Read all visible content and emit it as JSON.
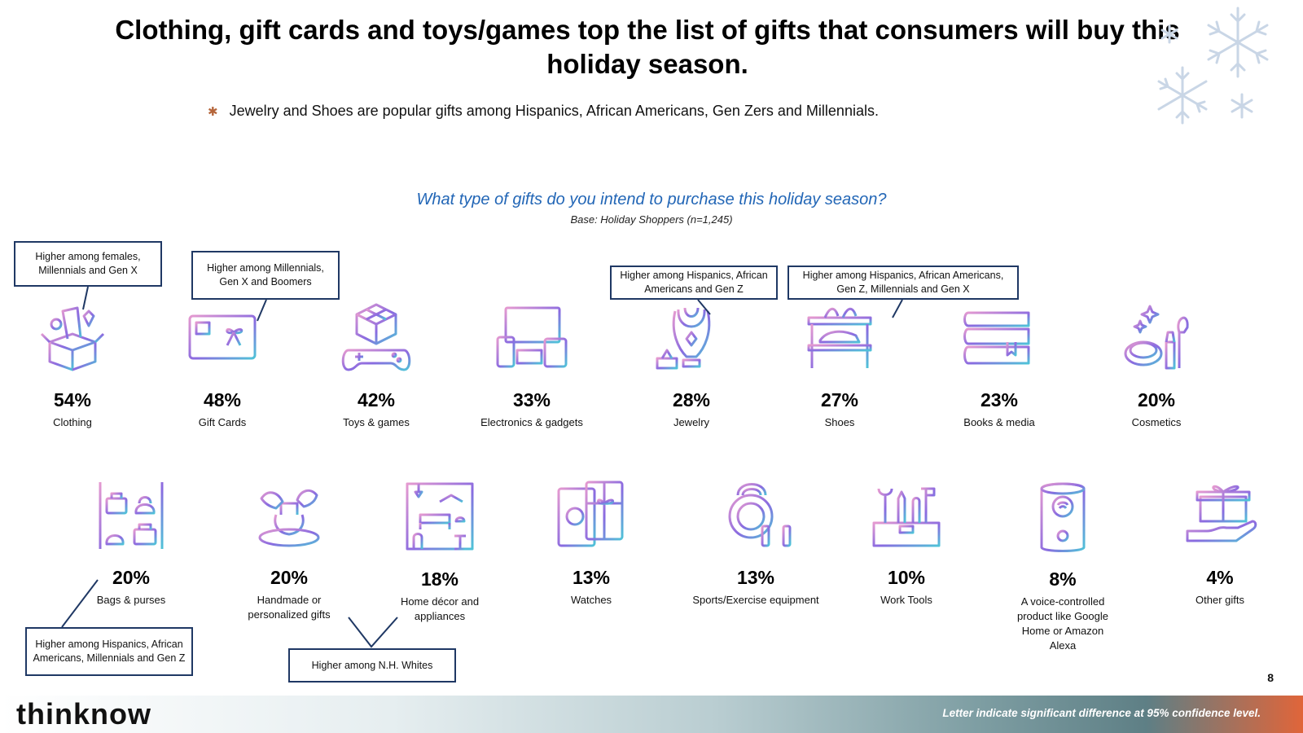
{
  "title": "Clothing, gift cards and toys/games top the list of gifts that consumers will buy this holiday season.",
  "bullet": "Jewelry and Shoes are popular gifts among Hispanics, African Americans, Gen Zers and Millennials.",
  "page_number": "8",
  "footer": {
    "logo": "thinknow",
    "note": "Letter indicate significant difference at 95% confidence level."
  },
  "callouts": {
    "clothing": "Higher among females, Millennials and Gen X",
    "gift_cards": "Higher among Millennials, Gen X and Boomers",
    "jewelry": "Higher among Hispanics, African Americans and Gen Z",
    "shoes": "Higher among Hispanics, African Americans, Gen Z, Millennials and Gen X",
    "bags": "Higher among Hispanics, African Americans, Millennials  and Gen Z",
    "handmade": "Higher among N.H. Whites"
  },
  "colors": {
    "icon_start": "#e59ad0",
    "icon_mid": "#8a6be0",
    "icon_end": "#4fc3d8",
    "question": "#2266b6",
    "callout_border": "#1f3864"
  },
  "chart_data": {
    "type": "table",
    "title": "What type of gifts do you intend to purchase this holiday season?",
    "subtitle": "Base: Holiday Shoppers (n=1,245)",
    "unit": "%",
    "categories": [
      "Clothing",
      "Gift Cards",
      "Toys & games",
      "Electronics & gadgets",
      "Jewelry",
      "Shoes",
      "Books & media",
      "Cosmetics",
      "Bags & purses",
      "Handmade or personalized gifts",
      "Home décor and appliances",
      "Watches",
      "Sports/Exercise equipment",
      "Work Tools",
      "A voice-controlled product like Google Home or Amazon Alexa",
      "Other gifts"
    ],
    "values": [
      54,
      48,
      42,
      33,
      28,
      27,
      23,
      20,
      20,
      20,
      18,
      13,
      13,
      10,
      8,
      4
    ],
    "labels": [
      "54%",
      "48%",
      "42%",
      "33%",
      "28%",
      "27%",
      "23%",
      "20%",
      "20%",
      "20%",
      "18%",
      "13%",
      "13%",
      "10%",
      "8%",
      "4%"
    ],
    "icons": [
      "gift-box-icon",
      "gift-card-icon",
      "toys-games-icon",
      "electronics-icon",
      "jewelry-icon",
      "shoes-icon",
      "books-icon",
      "cosmetics-icon",
      "bags-icon",
      "handmade-icon",
      "home-decor-icon",
      "watches-icon",
      "sports-icon",
      "work-tools-icon",
      "voice-speaker-icon",
      "other-gifts-icon"
    ]
  }
}
